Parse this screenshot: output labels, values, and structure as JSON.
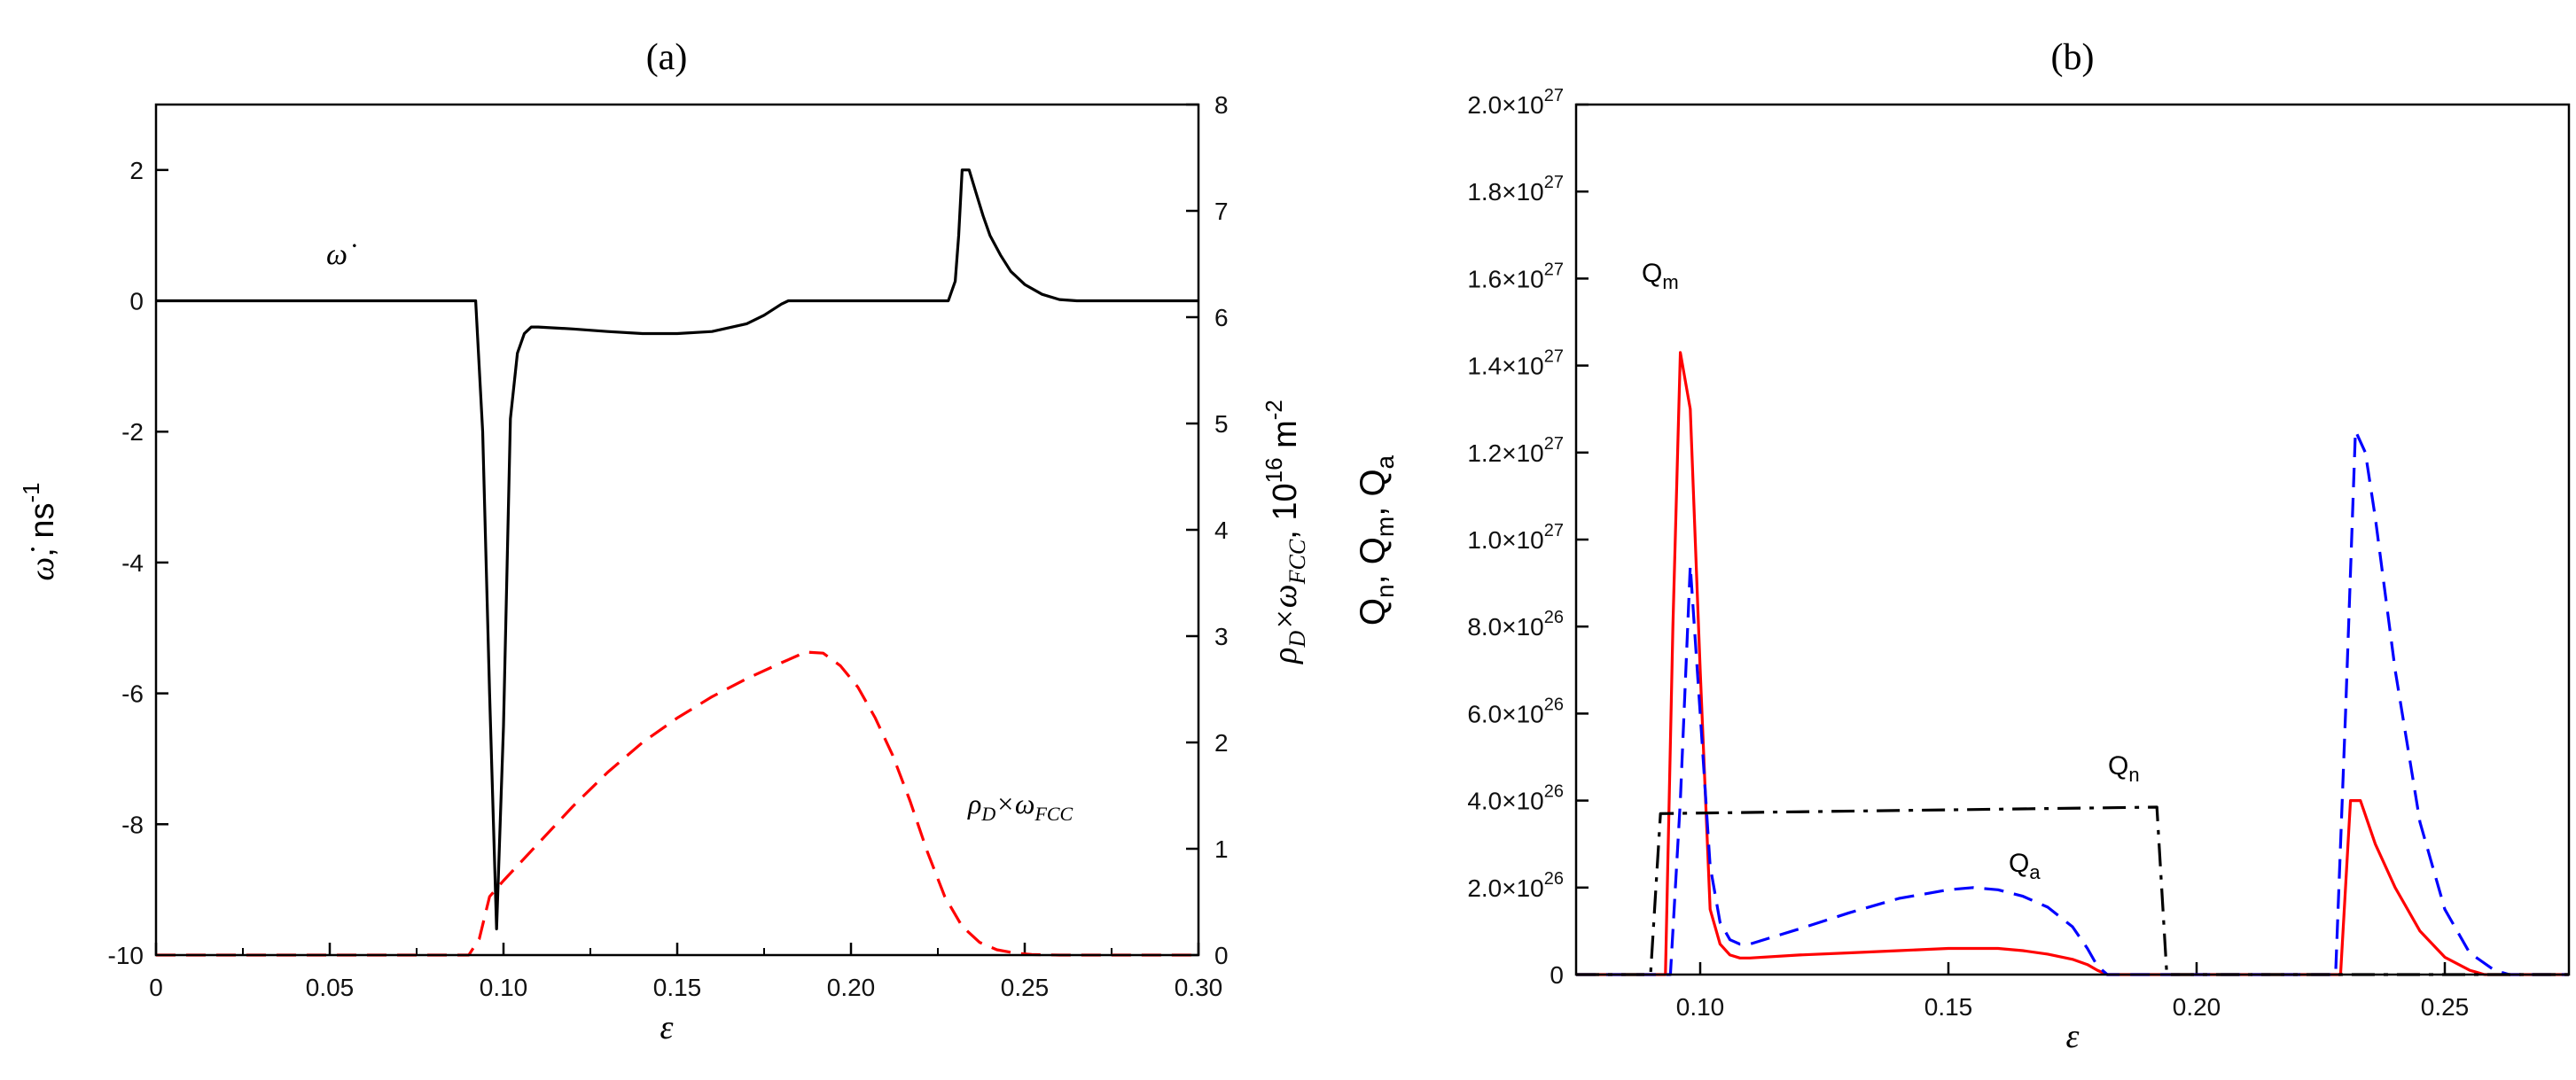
{
  "chart_data": [
    {
      "panel_label": "(a)",
      "type": "line",
      "xlabel": "ε",
      "xlim": [
        0,
        0.3
      ],
      "x_ticks": [
        0,
        0.05,
        0.1,
        0.15,
        0.2,
        0.25,
        0.3
      ],
      "x_tick_labels": [
        "0",
        "0.05",
        "0.10",
        "0.15",
        "0.20",
        "0.25",
        "0.30"
      ],
      "y_left": {
        "label_sym": "ω̇",
        "label_unit": ", ns",
        "label_unit_sup": "-1",
        "ylim": [
          -10,
          3
        ],
        "ticks": [
          -10,
          -8,
          -6,
          -4,
          -2,
          0,
          2
        ],
        "tick_labels": [
          "-10",
          "-8",
          "-6",
          "-4",
          "-2",
          "0",
          "2"
        ]
      },
      "y_right": {
        "label_main": "ρ",
        "label_sub1": "D",
        "label_mid": "×ω",
        "label_sub2": "FCC",
        "label_unit": ", 10",
        "label_unit_sup": "16",
        "label_unit_tail": " m",
        "label_unit_tail_sup": "-2",
        "ylim": [
          0,
          8
        ],
        "ticks": [
          0,
          1,
          2,
          3,
          4,
          5,
          6,
          7,
          8
        ],
        "tick_labels": [
          "0",
          "1",
          "2",
          "3",
          "4",
          "5",
          "6",
          "7",
          "8"
        ]
      },
      "series": [
        {
          "name": "omega_dot",
          "label": "ω̇",
          "axis": "left",
          "color": "#000000",
          "style": "solid",
          "x": [
            0,
            0.092,
            0.094,
            0.096,
            0.098,
            0.1,
            0.102,
            0.104,
            0.106,
            0.108,
            0.11,
            0.12,
            0.13,
            0.14,
            0.15,
            0.16,
            0.17,
            0.175,
            0.18,
            0.182,
            0.19,
            0.2,
            0.21,
            0.22,
            0.228,
            0.23,
            0.231,
            0.232,
            0.234,
            0.236,
            0.238,
            0.24,
            0.243,
            0.246,
            0.25,
            0.255,
            0.26,
            0.265,
            0.27,
            0.3
          ],
          "y": [
            0,
            0,
            -2.0,
            -6.0,
            -9.6,
            -6.5,
            -1.8,
            -0.8,
            -0.5,
            -0.4,
            -0.4,
            -0.43,
            -0.47,
            -0.5,
            -0.5,
            -0.47,
            -0.35,
            -0.22,
            -0.05,
            0,
            0,
            0,
            0,
            0,
            0,
            0.3,
            1.0,
            2.0,
            2.0,
            1.65,
            1.3,
            1.0,
            0.7,
            0.45,
            0.25,
            0.1,
            0.02,
            0,
            0,
            0
          ]
        },
        {
          "name": "rho_d_omega_fcc",
          "label": "ρD×ωFCC",
          "axis": "right",
          "color": "#ff0000",
          "style": "dashed",
          "x": [
            0,
            0.085,
            0.09,
            0.093,
            0.096,
            0.1,
            0.11,
            0.12,
            0.13,
            0.14,
            0.15,
            0.16,
            0.17,
            0.18,
            0.187,
            0.192,
            0.197,
            0.202,
            0.207,
            0.212,
            0.217,
            0.222,
            0.227,
            0.232,
            0.237,
            0.242,
            0.247,
            0.252,
            0.26,
            0.27,
            0.3
          ],
          "y": [
            0,
            0,
            0,
            0.15,
            0.55,
            0.7,
            1.05,
            1.4,
            1.72,
            2.0,
            2.23,
            2.43,
            2.6,
            2.75,
            2.85,
            2.84,
            2.72,
            2.52,
            2.23,
            1.88,
            1.45,
            0.97,
            0.55,
            0.27,
            0.12,
            0.05,
            0.02,
            0.005,
            0,
            0,
            0
          ]
        }
      ],
      "annotations": [
        {
          "text": "ω̇",
          "target": "omega_dot"
        },
        {
          "text_main": "ρ",
          "text_sub1": "D",
          "text_mid": "×ω",
          "text_sub2": "FCC",
          "target": "rho_d_omega_fcc"
        }
      ]
    },
    {
      "panel_label": "(b)",
      "type": "line",
      "xlabel": "ε",
      "xlim": [
        0.075,
        0.275
      ],
      "x_ticks": [
        0.1,
        0.15,
        0.2,
        0.25
      ],
      "x_tick_labels": [
        "0.10",
        "0.15",
        "0.20",
        "0.25"
      ],
      "y_left": {
        "label_parts": [
          "Q",
          "n",
          ", Q",
          "m",
          ", Q",
          "a"
        ],
        "ylim": [
          0,
          2e+27
        ],
        "ticks": [
          0,
          2e+26,
          4e+26,
          6e+26,
          8e+26,
          1e+27,
          1.2e+27,
          1.4e+27,
          1.6e+27,
          1.8e+27,
          2e+27
        ],
        "tick_mantissas": [
          "0",
          "2.0×10",
          "4.0×10",
          "6.0×10",
          "8.0×10",
          "1.0×10",
          "1.2×10",
          "1.4×10",
          "1.6×10",
          "1.8×10",
          "2.0×10"
        ],
        "tick_exponents": [
          "",
          "26",
          "26",
          "26",
          "26",
          "27",
          "27",
          "27",
          "27",
          "27",
          "27"
        ]
      },
      "series": [
        {
          "name": "Qm",
          "label_main": "Q",
          "label_sub": "m",
          "color": "#ff0000",
          "style": "solid",
          "x": [
            0.075,
            0.093,
            0.0945,
            0.096,
            0.098,
            0.1,
            0.102,
            0.104,
            0.106,
            0.108,
            0.11,
            0.12,
            0.13,
            0.14,
            0.15,
            0.16,
            0.165,
            0.17,
            0.175,
            0.178,
            0.18,
            0.182,
            0.226,
            0.229,
            0.231,
            0.233,
            0.236,
            0.24,
            0.245,
            0.25,
            0.255,
            0.258,
            0.26,
            0.275
          ],
          "y": [
            0,
            0,
            8e+26,
            1.43e+27,
            1.3e+27,
            7e+26,
            1.5e+26,
            7e+25,
            4.5e+25,
            3.8e+25,
            3.8e+25,
            4.5e+25,
            5e+25,
            5.5e+25,
            6e+25,
            6e+25,
            5.5e+25,
            4.7e+25,
            3.5e+25,
            2.3e+25,
            1e+25,
            0,
            0,
            0,
            4e+26,
            4e+26,
            3e+26,
            2e+26,
            1e+26,
            4e+25,
            1e+25,
            0,
            0,
            0
          ]
        },
        {
          "name": "Qa",
          "label_main": "Q",
          "label_sub": "a",
          "color": "#0000ff",
          "style": "dashed",
          "x": [
            0.075,
            0.094,
            0.096,
            0.098,
            0.1,
            0.102,
            0.104,
            0.106,
            0.108,
            0.11,
            0.12,
            0.13,
            0.14,
            0.15,
            0.155,
            0.16,
            0.165,
            0.17,
            0.175,
            0.178,
            0.18,
            0.182,
            0.226,
            0.228,
            0.23,
            0.232,
            0.234,
            0.236,
            0.24,
            0.245,
            0.25,
            0.255,
            0.26,
            0.263,
            0.275
          ],
          "y": [
            0,
            0,
            4e+26,
            9.4e+26,
            6e+26,
            2.5e+26,
            1.2e+26,
            8e+25,
            7e+25,
            7e+25,
            1.05e+26,
            1.42e+26,
            1.75e+26,
            1.95e+26,
            2e+26,
            1.95e+26,
            1.8e+26,
            1.55e+26,
            1.1e+26,
            6e+25,
            2e+25,
            0,
            0,
            0,
            6e+26,
            1.25e+27,
            1.2e+27,
            1.05e+27,
            7e+26,
            3.5e+26,
            1.5e+26,
            5e+25,
            1e+25,
            0,
            0
          ]
        },
        {
          "name": "Qn",
          "label_main": "Q",
          "label_sub": "n",
          "color": "#000000",
          "style": "dashdot",
          "x": [
            0.075,
            0.09,
            0.092,
            0.192,
            0.194,
            0.275
          ],
          "y": [
            0,
            0,
            3.7e+26,
            3.85e+26,
            0,
            0
          ]
        }
      ]
    }
  ]
}
